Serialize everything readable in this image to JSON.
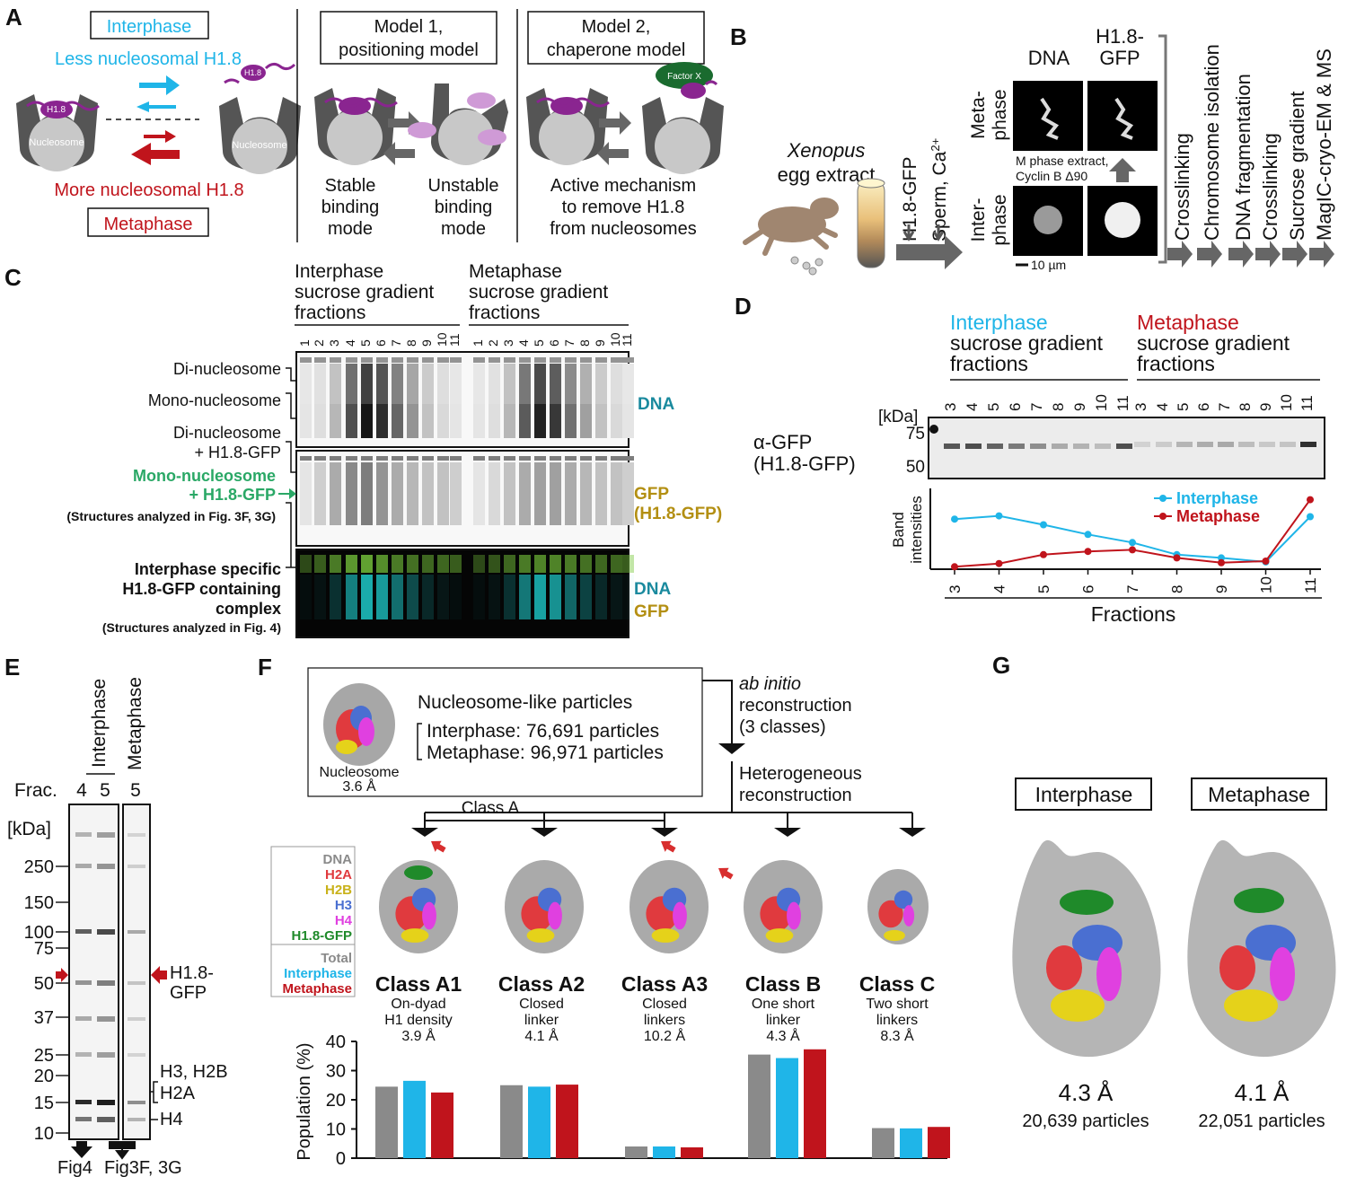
{
  "panel_a": {
    "letter": "A",
    "interphase": "Interphase",
    "less": "Less nucleosomal H1.8",
    "more": "More nucleosomal H1.8",
    "metaphase": "Metaphase",
    "h18": "H1.8",
    "nucleosome": "Nucleosome",
    "model1_l1": "Model 1,",
    "model1_l2": "positioning model",
    "model2_l1": "Model 2,",
    "model2_l2": "chaperone model",
    "factorx": "Factor X",
    "stable": [
      "Stable",
      "binding",
      "mode"
    ],
    "unstable": [
      "Unstable",
      "binding",
      "mode"
    ],
    "active": [
      "Active mechanism",
      "to remove H1.8",
      "from nucleosomes"
    ]
  },
  "panel_b": {
    "letter": "B",
    "organism_italic": "Xenopus",
    "organism_rest": "egg extract",
    "h18gfp": "H1.8-GFP",
    "sperm": "Sperm, Ca",
    "sperm_sup": "2+",
    "dna": "DNA",
    "h18_l1": "H1.8-",
    "h18_l2": "GFP",
    "meta_l1": "Meta-",
    "meta_l2": "phase",
    "inter_l1": "Inter-",
    "inter_l2": "phase",
    "m_extract_l1": "M phase extract,",
    "m_extract_l2": "Cyclin B Δ90",
    "scale": "10 µm",
    "steps": [
      "Crosslinking",
      "Chromosome isolation",
      "DNA fragmentation",
      "Crosslinking",
      "Sucrose gradient",
      "MagIC-cryo-EM & MS"
    ]
  },
  "panel_c": {
    "letter": "C",
    "inter_head": [
      "Interphase",
      "sucrose gradient",
      "fractions"
    ],
    "meta_head": [
      "Metaphase",
      "sucrose gradient",
      "fractions"
    ],
    "lanes": [
      "1",
      "2",
      "3",
      "4",
      "5",
      "6",
      "7",
      "8",
      "9",
      "10",
      "11"
    ],
    "di_nuc": "Di-nucleosome",
    "mono_nuc": "Mono-nucleosome",
    "di_nuc_h1_l1": "Di-nucleosome",
    "di_nuc_h1_l2": "+ H1.8-GFP",
    "mono_h1_l1": "Mono-nucleosome",
    "mono_h1_l2": "+ H1.8-GFP",
    "struct_3": "(Structures analyzed in Fig. 3F, 3G)",
    "inter_spec": [
      "Interphase specific",
      "H1.8-GFP containing",
      "complex"
    ],
    "struct_4": "(Structures analyzed in Fig. 4)",
    "dna": "DNA",
    "gfp": "GFP",
    "gfp_h1": "(H1.8-GFP)",
    "dna2": "DNA",
    "gfp2": "GFP"
  },
  "panel_d": {
    "letter": "D",
    "inter_head": [
      "Interphase",
      "sucrose gradient",
      "fractions"
    ],
    "meta_head": [
      "Metaphase",
      "sucrose gradient",
      "fractions"
    ],
    "kda": "[kDa]",
    "m75": "75",
    "m50": "50",
    "antibody_l1": "α-GFP",
    "antibody_l2": "(H1.8-GFP)",
    "ylabel_l1": "Band",
    "ylabel_l2": "intensities",
    "xlabel": "Fractions"
  },
  "chart_data": {
    "type": "line",
    "x": [
      3,
      4,
      5,
      6,
      7,
      8,
      9,
      10,
      11
    ],
    "series": [
      {
        "name": "Interphase",
        "color": "#1fb5e8",
        "values": [
          0.62,
          0.66,
          0.55,
          0.43,
          0.33,
          0.18,
          0.14,
          0.09,
          0.65
        ]
      },
      {
        "name": "Metaphase",
        "color": "#c0141c",
        "values": [
          0.03,
          0.07,
          0.18,
          0.22,
          0.24,
          0.14,
          0.08,
          0.1,
          0.86
        ]
      }
    ],
    "xlabel": "Fractions",
    "ylabel": "Band intensities",
    "ylim": [
      0,
      1
    ],
    "legend": "top-right"
  },
  "panel_e": {
    "letter": "E",
    "inter": "Interphase",
    "meta": "Metaphase",
    "frac": "Frac.",
    "lanes": [
      "4",
      "5",
      "5"
    ],
    "kda": "[kDa]",
    "markers": [
      "250",
      "150",
      "100",
      "75",
      "50",
      "37",
      "25",
      "20",
      "15",
      "10"
    ],
    "h18_l1": "H1.8-",
    "h18_l2": "GFP",
    "h3h2b": "H3, H2B",
    "h2a": "H2A",
    "h4": "H4",
    "fig4": "Fig4",
    "fig3": "Fig3F, 3G"
  },
  "panel_f": {
    "letter": "F",
    "nuc_like": "Nucleosome-like particles",
    "inter_particles": "Interphase: 76,691 particles",
    "meta_particles": "Metaphase: 96,971 particles",
    "nucleosome": "Nucleosome",
    "nuc_res": "3.6 Å",
    "abinitio_italic": "ab initio",
    "abinitio_l2": "reconstruction",
    "abinitio_l3": "(3 classes)",
    "hetero_l1": "Heterogeneous",
    "hetero_l2": "reconstruction",
    "classA": "Class A",
    "legend": [
      {
        "label": "DNA",
        "color": "#8a8a8a"
      },
      {
        "label": "H2A",
        "color": "#e03a3e"
      },
      {
        "label": "H2B",
        "color": "#c9b21a"
      },
      {
        "label": "H3",
        "color": "#4a6fd1"
      },
      {
        "label": "H4",
        "color": "#e040e0"
      },
      {
        "label": "H1.8-GFP",
        "color": "#1f8a2a"
      }
    ],
    "legend2": [
      {
        "label": "Total",
        "color": "#8a8a8a"
      },
      {
        "label": "Interphase",
        "color": "#1fb5e8"
      },
      {
        "label": "Metaphase",
        "color": "#c0141c"
      }
    ],
    "classes": [
      {
        "name": "Class A1",
        "d1": "On-dyad",
        "d2": "H1 density",
        "res": "3.9 Å"
      },
      {
        "name": "Class A2",
        "d1": "Closed",
        "d2": "linker",
        "res": "4.1 Å"
      },
      {
        "name": "Class A3",
        "d1": "Closed",
        "d2": "linkers",
        "res": "10.2 Å"
      },
      {
        "name": "Class B",
        "d1": "One short",
        "d2": "linker",
        "res": "4.3 Å"
      },
      {
        "name": "Class C",
        "d1": "Two short",
        "d2": "linkers",
        "res": "8.3 Å"
      }
    ],
    "ylabel": "Population (%)",
    "yticks": [
      "0",
      "10",
      "20",
      "30",
      "40"
    ],
    "chart": {
      "type": "bar",
      "categories": [
        "Class A1",
        "Class A2",
        "Class A3",
        "Class B",
        "Class C"
      ],
      "series": [
        {
          "name": "Total",
          "values": [
            24.5,
            25,
            4,
            35.5,
            10.3
          ]
        },
        {
          "name": "Interphase",
          "values": [
            26.5,
            24.5,
            4,
            34.3,
            10.2
          ]
        },
        {
          "name": "Metaphase",
          "values": [
            22.5,
            25.2,
            3.7,
            37.3,
            10.7
          ]
        }
      ],
      "ylim": [
        0,
        40
      ]
    }
  },
  "panel_g": {
    "letter": "G",
    "inter": "Interphase",
    "meta": "Metaphase",
    "inter_res": "4.3 Å",
    "inter_particles": "20,639 particles",
    "meta_res": "4.1 Å",
    "meta_particles": "22,051 particles"
  }
}
